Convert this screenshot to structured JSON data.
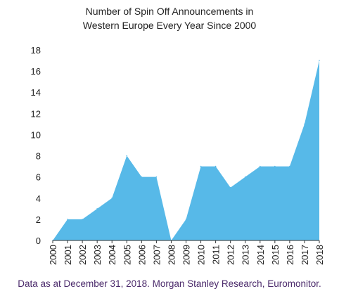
{
  "chart_data": {
    "type": "area",
    "title_lines": [
      "Number of Spin Off Announcements in",
      "Western Europe Every Year Since 2000"
    ],
    "x": [
      "2000",
      "2001",
      "2002",
      "2003",
      "2004",
      "2005",
      "2006",
      "2007",
      "2008",
      "2009",
      "2010",
      "2011",
      "2012",
      "2013",
      "2014",
      "2015",
      "2016",
      "2017",
      "2018"
    ],
    "values": [
      0,
      2,
      2,
      3,
      4,
      8,
      6,
      6,
      0,
      2,
      7,
      7,
      5,
      6,
      7,
      7,
      7,
      11,
      17
    ],
    "y_ticks": [
      "0",
      "2",
      "4",
      "6",
      "8",
      "10",
      "12",
      "14",
      "16",
      "18"
    ],
    "ylim": [
      0,
      18
    ],
    "grid": false,
    "legend": "none",
    "fill_color": "#57b9e8"
  },
  "source_text": "Data as at December 31, 2018. Morgan Stanley Research, Euromonitor."
}
